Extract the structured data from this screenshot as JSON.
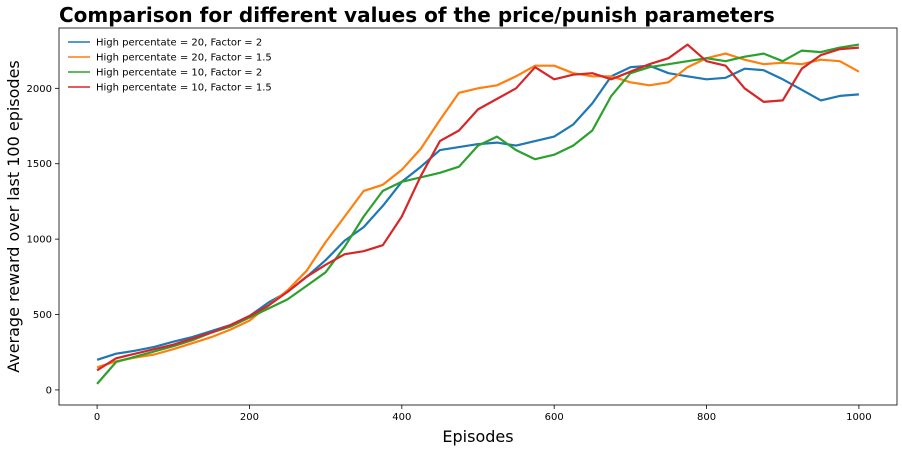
{
  "chart_data": {
    "type": "line",
    "title": "Comparison for different values of the price/punish parameters",
    "xlabel": "Episodes",
    "ylabel": "Average reward over last 100 episodes",
    "xlim": [
      -50,
      1050
    ],
    "ylim": [
      -100,
      2400
    ],
    "xticks": [
      0,
      200,
      400,
      600,
      800,
      1000
    ],
    "yticks": [
      0,
      500,
      1000,
      1500,
      2000
    ],
    "grid": false,
    "legend_position": "top-left",
    "series": [
      {
        "name": "High percentate = 20, Factor = 2",
        "color": "#1f77b4",
        "x": [
          0,
          25,
          50,
          75,
          100,
          125,
          150,
          175,
          200,
          225,
          250,
          275,
          300,
          325,
          350,
          375,
          400,
          425,
          450,
          475,
          500,
          525,
          550,
          575,
          600,
          625,
          650,
          675,
          700,
          725,
          750,
          775,
          800,
          825,
          850,
          875,
          900,
          925,
          950,
          975,
          1000
        ],
        "y": [
          200,
          240,
          260,
          285,
          320,
          350,
          390,
          430,
          490,
          580,
          650,
          750,
          860,
          990,
          1080,
          1220,
          1380,
          1480,
          1590,
          1610,
          1630,
          1640,
          1620,
          1650,
          1680,
          1760,
          1900,
          2080,
          2140,
          2150,
          2100,
          2080,
          2060,
          2070,
          2130,
          2120,
          2060,
          1990,
          1920,
          1950,
          1960
        ]
      },
      {
        "name": "High percentate = 20, Factor = 1.5",
        "color": "#ff7f0e",
        "x": [
          0,
          25,
          50,
          75,
          100,
          125,
          150,
          175,
          200,
          225,
          250,
          275,
          300,
          325,
          350,
          375,
          400,
          425,
          450,
          475,
          500,
          525,
          550,
          575,
          600,
          625,
          650,
          675,
          700,
          725,
          750,
          775,
          800,
          825,
          850,
          875,
          900,
          925,
          950,
          975,
          1000
        ],
        "y": [
          150,
          190,
          215,
          235,
          270,
          310,
          350,
          400,
          460,
          560,
          660,
          790,
          980,
          1150,
          1320,
          1360,
          1460,
          1600,
          1790,
          1970,
          2000,
          2020,
          2080,
          2150,
          2150,
          2100,
          2080,
          2080,
          2040,
          2020,
          2040,
          2140,
          2200,
          2230,
          2190,
          2160,
          2170,
          2160,
          2190,
          2180,
          2110
        ]
      },
      {
        "name": "High percentate = 10, Factor = 2",
        "color": "#2ca02c",
        "x": [
          0,
          25,
          50,
          75,
          100,
          125,
          150,
          175,
          200,
          225,
          250,
          275,
          300,
          325,
          350,
          375,
          400,
          425,
          450,
          475,
          500,
          525,
          550,
          575,
          600,
          625,
          650,
          675,
          700,
          725,
          750,
          775,
          800,
          825,
          850,
          875,
          900,
          925,
          950,
          975,
          1000
        ],
        "y": [
          40,
          185,
          220,
          255,
          290,
          330,
          380,
          420,
          480,
          540,
          600,
          690,
          780,
          950,
          1150,
          1320,
          1380,
          1410,
          1440,
          1480,
          1620,
          1680,
          1590,
          1530,
          1560,
          1620,
          1720,
          1950,
          2100,
          2140,
          2160,
          2180,
          2200,
          2180,
          2210,
          2230,
          2180,
          2250,
          2240,
          2270,
          2290
        ]
      },
      {
        "name": "High percentate = 10, Factor = 1.5",
        "color": "#d62728",
        "x": [
          0,
          25,
          50,
          75,
          100,
          125,
          150,
          175,
          200,
          225,
          250,
          275,
          300,
          325,
          350,
          375,
          400,
          425,
          450,
          475,
          500,
          525,
          550,
          575,
          600,
          625,
          650,
          675,
          700,
          725,
          750,
          775,
          800,
          825,
          850,
          875,
          900,
          925,
          950,
          975,
          1000
        ],
        "y": [
          130,
          210,
          240,
          270,
          300,
          340,
          380,
          430,
          490,
          560,
          650,
          750,
          830,
          900,
          920,
          960,
          1150,
          1420,
          1650,
          1720,
          1860,
          1930,
          2000,
          2140,
          2060,
          2090,
          2100,
          2060,
          2110,
          2160,
          2200,
          2290,
          2180,
          2150,
          2000,
          1910,
          1920,
          2130,
          2220,
          2260,
          2270
        ]
      }
    ]
  }
}
